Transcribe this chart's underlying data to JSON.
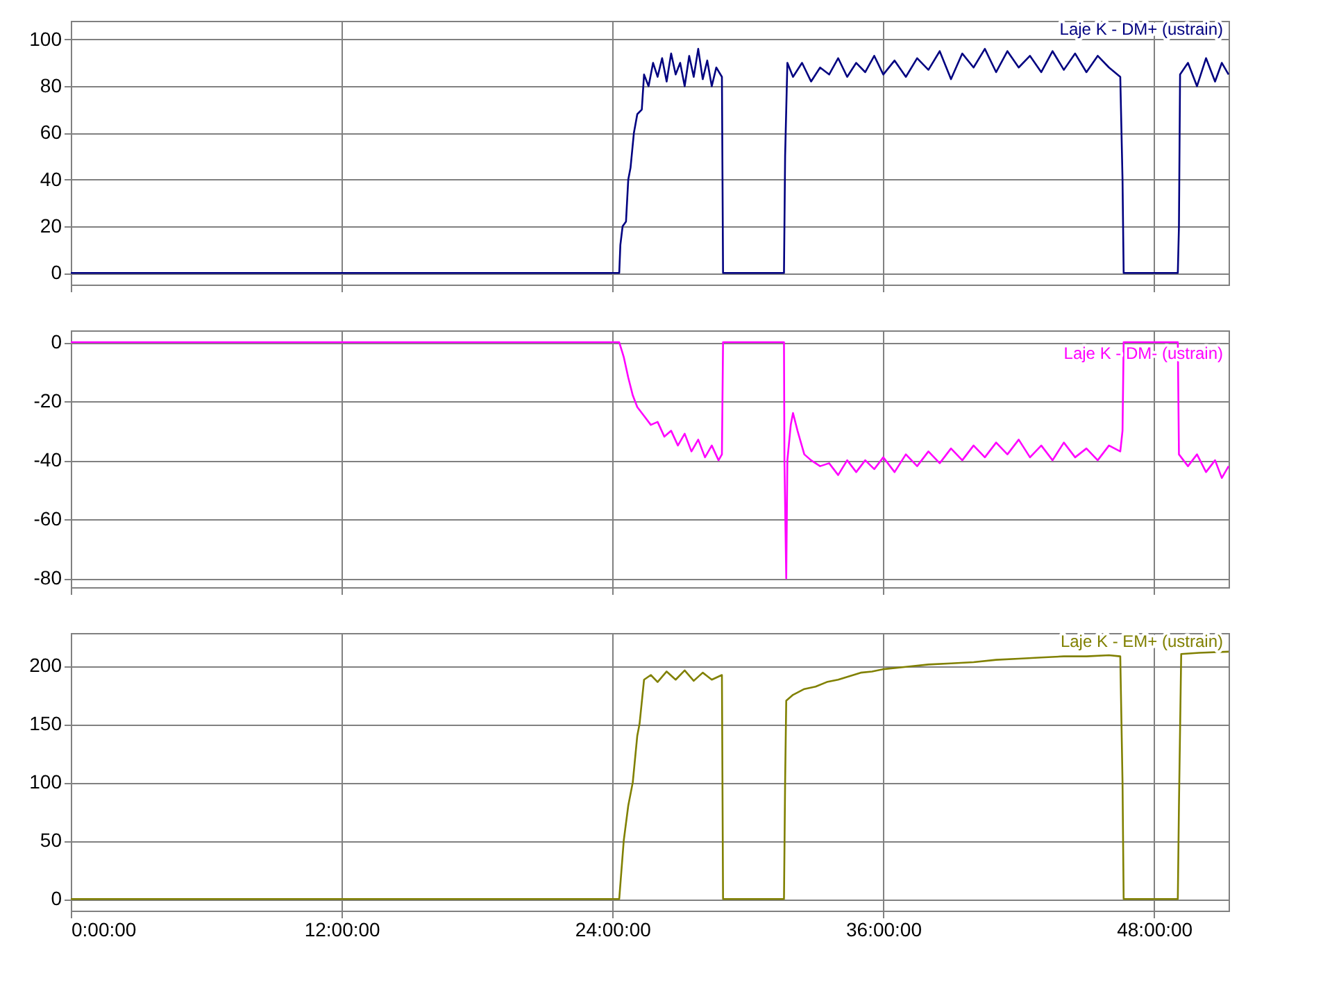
{
  "chart_data": [
    {
      "type": "line",
      "xlim": [
        0,
        51.3
      ],
      "ylim": [
        -5,
        108
      ],
      "yticks": [
        0,
        20,
        40,
        60,
        80,
        100
      ],
      "xticks": [
        0,
        12,
        24,
        36,
        48
      ],
      "grid": true,
      "tick_labels": "y",
      "series": [
        {
          "name": "Laje K - DM+ (ustrain)",
          "color": "#000080",
          "x": [
            0,
            24.3,
            24.35,
            24.45,
            24.6,
            24.7,
            24.8,
            24.95,
            25.1,
            25.3,
            25.4,
            25.6,
            25.8,
            26.0,
            26.2,
            26.4,
            26.6,
            26.8,
            27.0,
            27.2,
            27.4,
            27.6,
            27.8,
            28.0,
            28.2,
            28.4,
            28.6,
            28.85,
            28.9,
            31.6,
            31.65,
            31.75,
            32.0,
            32.4,
            32.8,
            33.2,
            33.6,
            34.0,
            34.4,
            34.8,
            35.2,
            35.6,
            36.0,
            36.5,
            37.0,
            37.5,
            38.0,
            38.5,
            39.0,
            39.5,
            40.0,
            40.5,
            41.0,
            41.5,
            42.0,
            42.5,
            43.0,
            43.5,
            44.0,
            44.5,
            45.0,
            45.5,
            46.0,
            46.5,
            46.6,
            46.65,
            49.05,
            49.1,
            49.15,
            49.5,
            49.9,
            50.3,
            50.7,
            51.0,
            51.3
          ],
          "values": [
            0,
            0,
            12,
            20,
            22,
            40,
            45,
            60,
            68,
            70,
            85,
            80,
            90,
            84,
            92,
            82,
            94,
            85,
            90,
            80,
            93,
            84,
            96,
            83,
            91,
            80,
            88,
            84,
            0,
            0,
            50,
            90,
            84,
            90,
            82,
            88,
            85,
            92,
            84,
            90,
            86,
            93,
            85,
            91,
            84,
            92,
            87,
            95,
            83,
            94,
            88,
            96,
            86,
            95,
            88,
            93,
            86,
            95,
            87,
            94,
            86,
            93,
            88,
            84,
            40,
            0,
            0,
            20,
            85,
            90,
            80,
            92,
            82,
            90,
            85
          ]
        }
      ]
    },
    {
      "type": "line",
      "xlim": [
        0,
        51.3
      ],
      "ylim": [
        -83,
        4
      ],
      "yticks": [
        -80,
        -60,
        -40,
        -20,
        0
      ],
      "xticks": [
        0,
        12,
        24,
        36,
        48
      ],
      "grid": true,
      "tick_labels": "y",
      "series": [
        {
          "name": "Laje K - DM- (ustrain)",
          "color": "#ff00ff",
          "x": [
            0,
            24.3,
            24.5,
            24.7,
            24.9,
            25.1,
            25.4,
            25.7,
            26.0,
            26.3,
            26.6,
            26.9,
            27.2,
            27.5,
            27.8,
            28.1,
            28.4,
            28.7,
            28.85,
            28.9,
            31.6,
            31.62,
            31.7,
            31.75,
            31.9,
            32.0,
            32.2,
            32.5,
            32.8,
            33.2,
            33.6,
            34.0,
            34.4,
            34.8,
            35.2,
            35.6,
            36.0,
            36.5,
            37.0,
            37.5,
            38.0,
            38.5,
            39.0,
            39.5,
            40.0,
            40.5,
            41.0,
            41.5,
            42.0,
            42.5,
            43.0,
            43.5,
            44.0,
            44.5,
            45.0,
            45.5,
            46.0,
            46.5,
            46.6,
            46.65,
            49.05,
            49.1,
            49.5,
            49.9,
            50.3,
            50.7,
            51.0,
            51.3
          ],
          "values": [
            0,
            0,
            -5,
            -12,
            -18,
            -22,
            -25,
            -28,
            -27,
            -32,
            -30,
            -35,
            -31,
            -37,
            -33,
            -39,
            -35,
            -40,
            -38,
            0,
            0,
            -40,
            -80,
            -40,
            -28,
            -24,
            -30,
            -38,
            -40,
            -42,
            -41,
            -45,
            -40,
            -44,
            -40,
            -43,
            -39,
            -44,
            -38,
            -42,
            -37,
            -41,
            -36,
            -40,
            -35,
            -39,
            -34,
            -38,
            -33,
            -39,
            -35,
            -40,
            -34,
            -39,
            -36,
            -40,
            -35,
            -37,
            -30,
            0,
            0,
            -38,
            -42,
            -38,
            -44,
            -40,
            -46,
            -42
          ]
        }
      ]
    },
    {
      "type": "line",
      "xlim": [
        0,
        51.3
      ],
      "ylim": [
        -10,
        228
      ],
      "yticks": [
        0,
        50,
        100,
        150,
        200
      ],
      "xticks": [
        {
          "value": 0,
          "label": "0:00:00"
        },
        {
          "value": 12,
          "label": "12:00:00"
        },
        {
          "value": 24,
          "label": "24:00:00"
        },
        {
          "value": 36,
          "label": "36:00:00"
        },
        {
          "value": 48,
          "label": "48:00:00"
        }
      ],
      "grid": true,
      "series": [
        {
          "name": "Laje K - EM+ (ustrain)",
          "color": "#808000",
          "x": [
            0,
            24.3,
            24.5,
            24.7,
            24.9,
            25.1,
            25.2,
            25.4,
            25.7,
            26.0,
            26.4,
            26.8,
            27.2,
            27.6,
            28.0,
            28.4,
            28.85,
            28.9,
            31.6,
            31.65,
            31.7,
            32.0,
            32.5,
            33.0,
            33.5,
            34.0,
            34.5,
            35.0,
            35.5,
            36.0,
            37.0,
            38.0,
            39.0,
            40.0,
            41.0,
            42.0,
            43.0,
            44.0,
            45.0,
            46.0,
            46.5,
            46.6,
            46.65,
            49.05,
            49.1,
            49.2,
            50.0,
            51.3
          ],
          "values": [
            0,
            0,
            50,
            80,
            100,
            140,
            150,
            188,
            192,
            186,
            195,
            188,
            196,
            187,
            194,
            188,
            192,
            0,
            0,
            100,
            170,
            175,
            180,
            182,
            186,
            188,
            191,
            194,
            195,
            197,
            199,
            201,
            202,
            203,
            205,
            206,
            207,
            208,
            208,
            209,
            208,
            100,
            0,
            0,
            80,
            210,
            211,
            212
          ]
        }
      ]
    }
  ]
}
